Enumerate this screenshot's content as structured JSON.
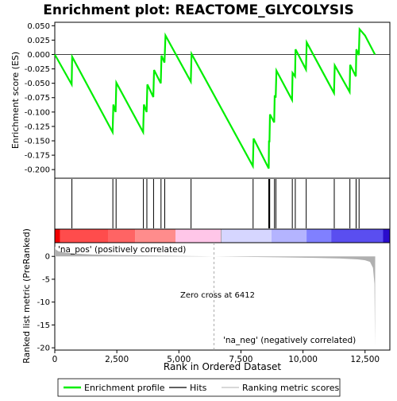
{
  "chart_data": {
    "type": "line",
    "title": "Enrichment plot: REACTOME_GLYCOLYSIS",
    "es_panel": {
      "ylabel": "Enrichment score (ES)",
      "ylim": [
        -0.215,
        0.056
      ],
      "yticks": [
        0.05,
        0.025,
        0.0,
        -0.025,
        -0.05,
        -0.075,
        -0.1,
        -0.125,
        -0.15,
        -0.175,
        -0.2
      ],
      "ytick_labels": [
        "0.050",
        "0.025",
        "0.000",
        "-0.025",
        "-0.050",
        "-0.075",
        "-0.100",
        "-0.125",
        "-0.150",
        "-0.175",
        "-0.200"
      ],
      "line_color": "#00ee00",
      "points": [
        [
          0,
          0.0
        ],
        [
          680,
          -0.052
        ],
        [
          700,
          -0.004
        ],
        [
          2330,
          -0.135
        ],
        [
          2360,
          -0.087
        ],
        [
          2450,
          -0.1
        ],
        [
          2480,
          -0.049
        ],
        [
          3560,
          -0.135
        ],
        [
          3590,
          -0.087
        ],
        [
          3700,
          -0.1
        ],
        [
          3730,
          -0.052
        ],
        [
          3970,
          -0.074
        ],
        [
          4000,
          -0.027
        ],
        [
          4270,
          -0.05
        ],
        [
          4300,
          -0.002
        ],
        [
          4420,
          -0.014
        ],
        [
          4460,
          0.033
        ],
        [
          5480,
          -0.047
        ],
        [
          5510,
          0.001
        ],
        [
          7980,
          -0.194
        ],
        [
          8010,
          -0.146
        ],
        [
          8620,
          -0.198
        ],
        [
          8630,
          -0.151
        ],
        [
          8650,
          -0.151
        ],
        [
          8670,
          -0.104
        ],
        [
          8840,
          -0.118
        ],
        [
          8860,
          -0.071
        ],
        [
          8900,
          -0.075
        ],
        [
          8930,
          -0.028
        ],
        [
          9560,
          -0.079
        ],
        [
          9580,
          -0.032
        ],
        [
          9680,
          -0.038
        ],
        [
          9700,
          0.009
        ],
        [
          10120,
          -0.026
        ],
        [
          10150,
          0.021
        ],
        [
          11250,
          -0.067
        ],
        [
          11280,
          -0.019
        ],
        [
          11880,
          -0.065
        ],
        [
          11900,
          -0.018
        ],
        [
          12130,
          -0.038
        ],
        [
          12150,
          0.009
        ],
        [
          12250,
          -0.001
        ],
        [
          12280,
          0.044
        ],
        [
          12500,
          0.033
        ],
        [
          12900,
          0.0
        ]
      ]
    },
    "hits": [
      690,
      2340,
      2470,
      3570,
      3710,
      3980,
      4280,
      4430,
      5490,
      7990,
      8620,
      8640,
      8660,
      8850,
      8910,
      9570,
      9690,
      10130,
      11260,
      11890,
      12140,
      12260
    ],
    "metric_panel": {
      "ylabel": "Ranked list metric (PreRanked)",
      "ylim": [
        -20.5,
        3
      ],
      "yticks": [
        0,
        -5,
        -10,
        -15,
        -20
      ],
      "ytick_labels": [
        "0",
        "-5",
        "-10",
        "-15",
        "-20"
      ],
      "xlabel": "Rank in Ordered Dataset",
      "xlim": [
        0,
        13500
      ],
      "xticks": [
        0,
        2500,
        5000,
        7500,
        10000,
        12500
      ],
      "xtick_labels": [
        "0",
        "2,500",
        "5,000",
        "7,500",
        "10,000",
        "12,500"
      ],
      "fill_color": "#b0b0b0",
      "profile": [
        [
          0,
          2.2
        ],
        [
          40,
          1.5
        ],
        [
          150,
          1.1
        ],
        [
          400,
          0.85
        ],
        [
          800,
          0.6
        ],
        [
          1500,
          0.42
        ],
        [
          2500,
          0.3
        ],
        [
          4000,
          0.16
        ],
        [
          5500,
          0.06
        ],
        [
          6412,
          0.0
        ],
        [
          7500,
          -0.08
        ],
        [
          9000,
          -0.2
        ],
        [
          10500,
          -0.33
        ],
        [
          11500,
          -0.46
        ],
        [
          12200,
          -0.65
        ],
        [
          12500,
          -0.85
        ],
        [
          12700,
          -1.2
        ],
        [
          12820,
          -2.5
        ],
        [
          12880,
          -6.0
        ],
        [
          12900,
          -19.6
        ],
        [
          12910,
          0.0
        ]
      ],
      "zero_cross_rank": 6412,
      "annotations": {
        "pos_label": "'na_pos' (positively correlated)",
        "neg_label": "'na_neg' (negatively correlated)",
        "zero_cross": "Zero cross at 6412"
      },
      "pos_color": "#dd0000",
      "neg_color": "#0000cc"
    },
    "gradient_bar": {
      "total_rank": 12910,
      "segments": [
        {
          "from": 0,
          "to": 200,
          "color": "#f00000"
        },
        {
          "from": 200,
          "to": 2050,
          "color": "#ff4c4c"
        },
        {
          "from": 2050,
          "to": 3100,
          "color": "#ff6464"
        },
        {
          "from": 3100,
          "to": 4650,
          "color": "#ff8c8c"
        },
        {
          "from": 4650,
          "to": 6412,
          "color": "#ffc6e8"
        },
        {
          "from": 6412,
          "to": 8350,
          "color": "#d6d6ff"
        },
        {
          "from": 8350,
          "to": 9700,
          "color": "#b4b4ff"
        },
        {
          "from": 9700,
          "to": 10650,
          "color": "#8080ff"
        },
        {
          "from": 10650,
          "to": 12650,
          "color": "#5a4ef0"
        },
        {
          "from": 12650,
          "to": 12910,
          "color": "#2a0ccc"
        }
      ]
    },
    "legend": {
      "items": [
        {
          "label": "Enrichment profile",
          "color": "#00ee00",
          "kind": "line"
        },
        {
          "label": "Hits",
          "color": "#000000",
          "kind": "line"
        },
        {
          "label": "Ranking metric scores",
          "color": "#c0c0c0",
          "kind": "line"
        }
      ]
    }
  }
}
